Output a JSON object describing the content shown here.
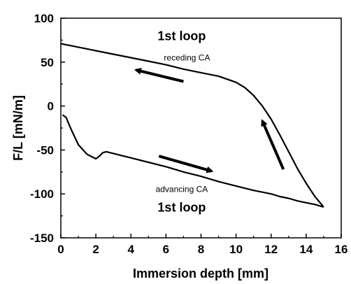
{
  "chart_data": {
    "type": "line",
    "xlabel": "Immersion depth [mm]",
    "ylabel": "F/L [mN/m]",
    "xlim": [
      0,
      16
    ],
    "ylim": [
      -150,
      100
    ],
    "xticks": [
      "0",
      "2",
      "4",
      "6",
      "8",
      "10",
      "12",
      "14",
      "16"
    ],
    "yticks": [
      "100",
      "50",
      "0",
      "-50",
      "-100",
      "-150"
    ],
    "grid": false,
    "series": [
      {
        "name": "receding",
        "x": [
          0,
          1,
          2,
          3,
          4,
          5,
          6,
          7,
          8,
          9,
          10,
          10.5,
          11,
          11.5,
          12,
          12.5,
          13,
          13.5,
          14,
          14.5,
          15
        ],
        "y": [
          71,
          67,
          63,
          59,
          55,
          51,
          47,
          42,
          38,
          34,
          27,
          21,
          12,
          0,
          -15,
          -33,
          -52,
          -71,
          -88,
          -103,
          -115
        ]
      },
      {
        "name": "advancing",
        "x": [
          0.1,
          0.3,
          0.6,
          1,
          1.5,
          2,
          2.2,
          2.4,
          2.6,
          3,
          4,
          5,
          6,
          7,
          8,
          9,
          10,
          11,
          12,
          12.5,
          13,
          13.5,
          14,
          14.5,
          15
        ],
        "y": [
          -10,
          -13,
          -27,
          -44,
          -55,
          -60,
          -57,
          -53,
          -52,
          -54,
          -59,
          -64,
          -69,
          -75,
          -80,
          -86,
          -91,
          -96,
          -100,
          -103,
          -105,
          -108,
          -110,
          -112,
          -115
        ]
      }
    ],
    "annotations": [
      {
        "text": "1st loop",
        "x": 6.9,
        "y": 75,
        "style": "big"
      },
      {
        "text": "receding CA",
        "x": 7.2,
        "y": 52,
        "style": "small"
      },
      {
        "text": "advancing CA",
        "x": 6.9,
        "y": -98,
        "style": "small"
      },
      {
        "text": "1st loop",
        "x": 6.9,
        "y": -120,
        "style": "big"
      }
    ],
    "arrows": [
      {
        "from": [
          7,
          28
        ],
        "to": [
          4.3,
          41
        ]
      },
      {
        "from": [
          5.6,
          -57
        ],
        "to": [
          8.6,
          -74
        ]
      },
      {
        "from": [
          12.7,
          -72
        ],
        "to": [
          11.5,
          -17
        ]
      }
    ]
  }
}
